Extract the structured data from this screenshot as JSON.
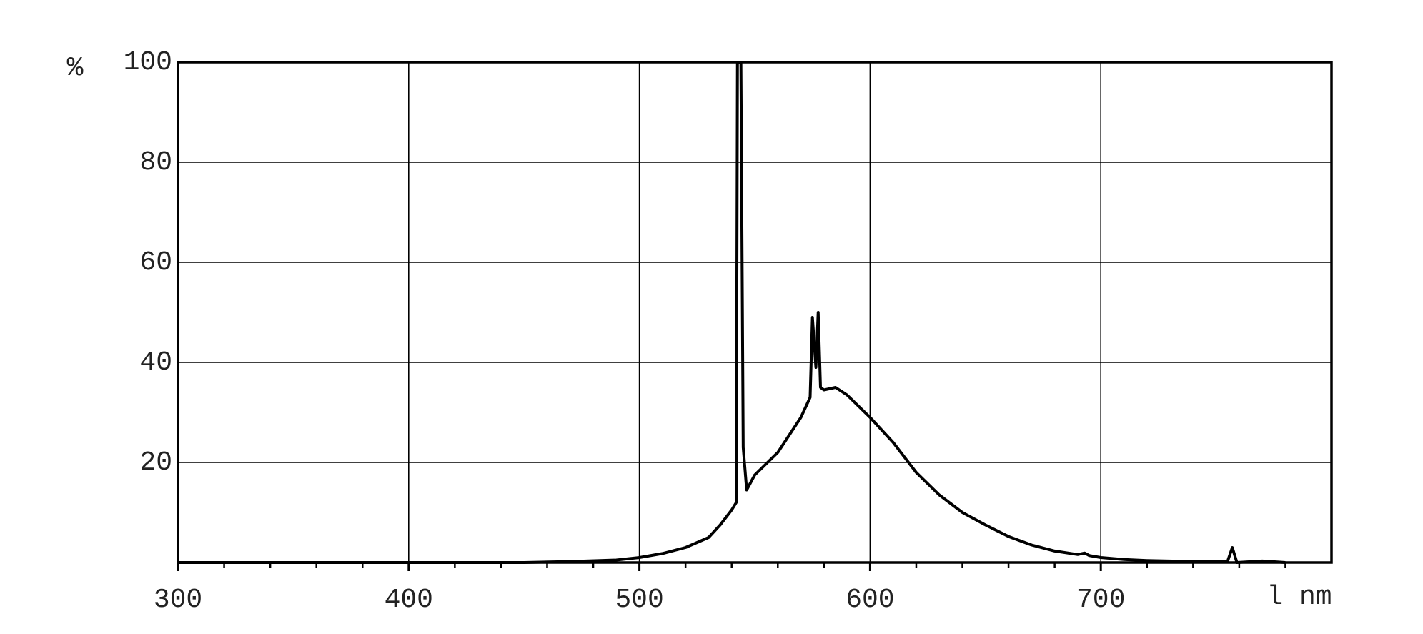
{
  "chart_data": {
    "type": "line",
    "xlabel": "l nm",
    "ylabel": "%",
    "xlim": [
      300,
      800
    ],
    "ylim": [
      0,
      100
    ],
    "xticks": [
      300,
      400,
      500,
      600,
      700
    ],
    "xminorticks": [
      320,
      340,
      360,
      380,
      420,
      440,
      460,
      480,
      520,
      540,
      560,
      580,
      620,
      640,
      660,
      680,
      720,
      740,
      760,
      780
    ],
    "yticks": [
      20,
      40,
      60,
      80,
      100
    ],
    "grid": true,
    "series": [
      {
        "color": "#000000",
        "x": [
          300,
          450,
          470,
          490,
          500,
          510,
          520,
          530,
          535,
          540,
          542,
          542.5,
          544,
          545,
          546.5,
          550,
          560,
          570,
          574,
          575,
          576.5,
          577.5,
          578.5,
          580,
          585,
          590,
          600,
          610,
          620,
          630,
          640,
          650,
          660,
          670,
          680,
          690,
          693,
          695,
          700,
          710,
          720,
          740,
          755,
          757,
          759,
          770,
          780
        ],
        "values": [
          0,
          0,
          0.2,
          0.5,
          1,
          1.8,
          3,
          5,
          7.5,
          10.5,
          12,
          100,
          100,
          23,
          14.5,
          17.5,
          22,
          29,
          33,
          49,
          39,
          50,
          35,
          34.5,
          35,
          33.5,
          29,
          24,
          18,
          13.5,
          10,
          7.5,
          5.2,
          3.5,
          2.3,
          1.6,
          1.9,
          1.4,
          1,
          0.6,
          0.4,
          0.2,
          0.3,
          3,
          0,
          0.3,
          0
        ]
      }
    ]
  }
}
